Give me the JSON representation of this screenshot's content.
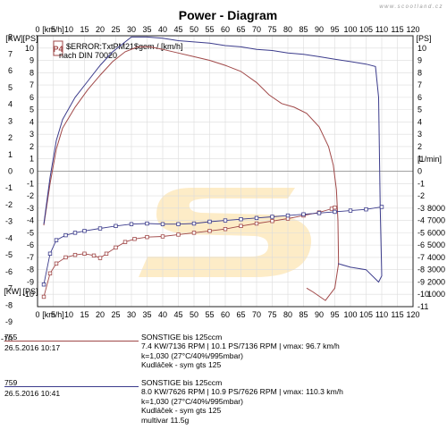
{
  "watermark": "www.scootland.cz",
  "chart_data": {
    "type": "line",
    "title": "Power - Diagram",
    "x_axis": {
      "label": "[km/h]",
      "range": [
        0,
        120
      ],
      "ticks": [
        0,
        5,
        10,
        15,
        20,
        25,
        30,
        35,
        40,
        45,
        50,
        55,
        60,
        65,
        70,
        75,
        80,
        85,
        90,
        95,
        100,
        105,
        110,
        115,
        120
      ]
    },
    "y_left_kw": {
      "label": "[KW]",
      "range": [
        -11,
        8
      ],
      "ticks": [
        8,
        7,
        6,
        5,
        4,
        3,
        2,
        1,
        0,
        -1,
        -2,
        -3,
        -4,
        -5,
        -6,
        -7,
        -8,
        -9,
        -10
      ]
    },
    "y_left_ps": {
      "label": "[PS]",
      "range": [
        -11,
        11
      ],
      "ticks": [
        11,
        10,
        9,
        8,
        7,
        6,
        5,
        4,
        3,
        2,
        1,
        0,
        -1,
        -2,
        -3,
        -4,
        -5,
        -6,
        -7,
        -8,
        -9,
        -10,
        -11
      ]
    },
    "y_right_ps": {
      "label": "[PS]",
      "range": [
        -11,
        11
      ],
      "ticks": [
        11,
        10,
        9,
        8,
        7,
        6,
        5,
        4,
        3,
        2,
        1,
        0,
        -1,
        -2,
        -3,
        -4,
        -5,
        -6,
        -7,
        -8,
        -9,
        -10,
        -11
      ]
    },
    "y_right_rpm": {
      "label": "[1/min]",
      "range": [
        0,
        8000
      ],
      "ticks": [
        8000,
        7000,
        6000,
        5000,
        4000,
        3000,
        2000,
        1000
      ]
    },
    "legend": {
      "badge": "P4",
      "line1": "$ERROR:TxtPM21$gem / [km/h]",
      "line2": "nach DIN 70020"
    },
    "grid": true,
    "series": [
      {
        "name": "755",
        "color": "#a04848",
        "power_ps": [
          [
            2,
            -4.4
          ],
          [
            4,
            -1
          ],
          [
            6,
            1.8
          ],
          [
            8,
            3.5
          ],
          [
            12,
            5.2
          ],
          [
            16,
            6.6
          ],
          [
            20,
            7.8
          ],
          [
            24,
            8.9
          ],
          [
            28,
            9.7
          ],
          [
            32,
            10.1
          ],
          [
            36,
            10.1
          ],
          [
            40,
            9.9
          ],
          [
            45,
            9.6
          ],
          [
            50,
            9.3
          ],
          [
            55,
            9
          ],
          [
            60,
            8.6
          ],
          [
            65,
            8.1
          ],
          [
            70,
            7.2
          ],
          [
            74,
            6.2
          ],
          [
            78,
            5.5
          ],
          [
            82,
            5.2
          ],
          [
            86,
            4.7
          ],
          [
            90,
            3.6
          ],
          [
            93,
            2
          ],
          [
            94.5,
            0.5
          ],
          [
            95.5,
            -1.5
          ],
          [
            96,
            -4
          ],
          [
            96.2,
            -7.5
          ],
          [
            95,
            -9.5
          ],
          [
            92,
            -10.5
          ],
          [
            88,
            -9.8
          ],
          [
            86,
            -9.5
          ]
        ],
        "rpm": [
          [
            2,
            800
          ],
          [
            4,
            2700
          ],
          [
            6,
            3500
          ],
          [
            9,
            4000
          ],
          [
            12,
            4200
          ],
          [
            15,
            4300
          ],
          [
            18,
            4150
          ],
          [
            20,
            3950
          ],
          [
            22,
            4300
          ],
          [
            25,
            4800
          ],
          [
            28,
            5250
          ],
          [
            31,
            5500
          ],
          [
            35,
            5650
          ],
          [
            40,
            5700
          ],
          [
            45,
            5850
          ],
          [
            50,
            6000
          ],
          [
            55,
            6150
          ],
          [
            60,
            6300
          ],
          [
            65,
            6550
          ],
          [
            70,
            6750
          ],
          [
            75,
            6950
          ],
          [
            80,
            7150
          ],
          [
            85,
            7400
          ],
          [
            90,
            7650
          ],
          [
            94,
            7950
          ],
          [
            95,
            8050
          ]
        ]
      },
      {
        "name": "759",
        "color": "#3c3c8c",
        "power_ps": [
          [
            2,
            -4.3
          ],
          [
            4,
            -0.5
          ],
          [
            6,
            2.5
          ],
          [
            8,
            4.2
          ],
          [
            12,
            6
          ],
          [
            16,
            7.3
          ],
          [
            20,
            8.6
          ],
          [
            24,
            9.7
          ],
          [
            28,
            10.5
          ],
          [
            30,
            10.9
          ],
          [
            35,
            10.9
          ],
          [
            40,
            10.8
          ],
          [
            45,
            10.6
          ],
          [
            50,
            10.5
          ],
          [
            55,
            10.4
          ],
          [
            60,
            10.2
          ],
          [
            65,
            10.1
          ],
          [
            70,
            9.9
          ],
          [
            75,
            9.8
          ],
          [
            80,
            9.6
          ],
          [
            85,
            9.5
          ],
          [
            90,
            9.3
          ],
          [
            95,
            9.1
          ],
          [
            100,
            8.9
          ],
          [
            105,
            8.7
          ],
          [
            108,
            8.5
          ],
          [
            109,
            6
          ],
          [
            109.5,
            -3
          ],
          [
            110,
            -8.5
          ],
          [
            109,
            -9
          ],
          [
            105,
            -8
          ],
          [
            100,
            -7.8
          ],
          [
            96,
            -7.5
          ]
        ],
        "rpm": [
          [
            2,
            1800
          ],
          [
            4,
            4300
          ],
          [
            6,
            5400
          ],
          [
            9,
            5800
          ],
          [
            12,
            6000
          ],
          [
            15,
            6150
          ],
          [
            20,
            6350
          ],
          [
            25,
            6550
          ],
          [
            30,
            6700
          ],
          [
            35,
            6750
          ],
          [
            40,
            6700
          ],
          [
            45,
            6700
          ],
          [
            50,
            6750
          ],
          [
            55,
            6900
          ],
          [
            60,
            7000
          ],
          [
            65,
            7100
          ],
          [
            70,
            7200
          ],
          [
            75,
            7300
          ],
          [
            80,
            7400
          ],
          [
            85,
            7500
          ],
          [
            90,
            7600
          ],
          [
            95,
            7700
          ],
          [
            100,
            7800
          ],
          [
            105,
            7900
          ],
          [
            110,
            8100
          ]
        ]
      }
    ]
  },
  "runs": [
    {
      "id": "755",
      "date": "26.5.2016  10:17",
      "model": "SONSTIGE bis    125ccm",
      "result": "7.4 KW/7136 RPM  |  10.1 PS/7136 RPM  |  vmax: 96.7 km/h",
      "condition": "k=1,030 (27°C/40%/995mbar)",
      "bike": "Kudláček - sym gts 125",
      "extra": ""
    },
    {
      "id": "759",
      "date": "26.5.2016  10:41",
      "model": "SONSTIGE bis    125ccm",
      "result": "8.0 KW/7626 RPM  |  10.9 PS/7626 RPM  |  vmax: 110.3 km/h",
      "condition": "k=1,030 (27°C/40%/995mbar)",
      "bike": "Kudláček - sym gts 125",
      "extra": "multivar 11.5g"
    }
  ]
}
